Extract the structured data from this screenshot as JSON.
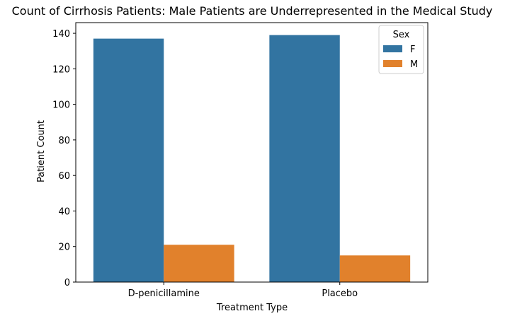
{
  "chart_data": {
    "type": "bar",
    "title": "Count of Cirrhosis Patients: Male Patients are Underrepresented in the Medical Study",
    "xlabel": "Treatment Type",
    "ylabel": "Patient Count",
    "categories": [
      "D-penicillamine",
      "Placebo"
    ],
    "series": [
      {
        "name": "F",
        "color": "#3274a1",
        "values": [
          137,
          139
        ]
      },
      {
        "name": "M",
        "color": "#e1812c",
        "values": [
          21,
          15
        ]
      }
    ],
    "ylim": [
      0,
      146
    ],
    "yticks": [
      0,
      20,
      40,
      60,
      80,
      100,
      120,
      140
    ],
    "grid": false,
    "legend": {
      "title": "Sex",
      "position": "top-right"
    }
  }
}
